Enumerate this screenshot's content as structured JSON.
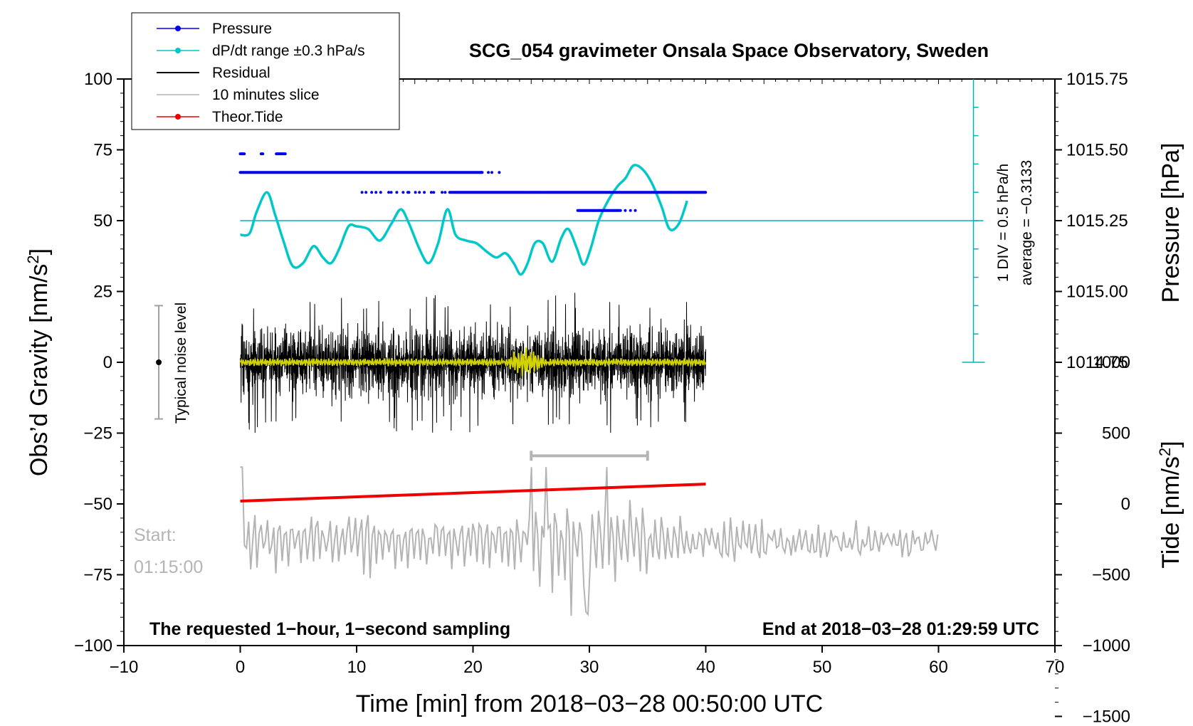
{
  "chart_data": {
    "type": "line",
    "title": "SCG_054 gravimeter Onsala Space Observatory, Sweden",
    "xlabel": "Time [min] from 2018−03−28 00:50:00 UTC",
    "ylabel_left": "Obs’d Gravity [nm/s",
    "ylabel_left_sup": "2",
    "ylabel_left_end": "]",
    "ylabel_right_top": "Pressure [hPa]",
    "ylabel_right_bottom": "Tide [nm/s",
    "ylabel_right_bottom_sup": "2",
    "ylabel_right_bottom_end": "]",
    "xlim": [
      -10,
      70
    ],
    "ylim": [
      -100,
      100
    ],
    "x_ticks": [
      -10,
      0,
      10,
      20,
      30,
      40,
      50,
      60,
      70
    ],
    "x_tick_labels": [
      "−10",
      "0",
      "10",
      "20",
      "30",
      "40",
      "50",
      "60",
      "70"
    ],
    "y_ticks": [
      100,
      75,
      50,
      25,
      0,
      -25,
      -50,
      -75,
      -100
    ],
    "y_tick_labels": [
      "100",
      "75",
      "50",
      "25",
      "0",
      "−25",
      "−50",
      "−75",
      "−100"
    ],
    "pressure_axis": {
      "ticks": [
        1015.75,
        1015.5,
        1015.25,
        1015.0,
        1014.75
      ],
      "tick_labels": [
        "1015.75",
        "1015.50",
        "1015.25",
        "1015.00",
        "1014.75"
      ],
      "gravity_at_1015_25": 50,
      "gravity_per_hpa": 100
    },
    "tide_axis": {
      "ticks": [
        1000,
        500,
        0,
        -500,
        -1000,
        -1500
      ],
      "tick_labels": [
        "1000",
        "500",
        "0",
        "−500",
        "−1000",
        "−1500"
      ],
      "gravity_at_zero": -50,
      "gravity_per_1000": 50
    },
    "legend": [
      {
        "label": "Pressure",
        "color": "#0000ee",
        "marker": "dot"
      },
      {
        "label": "dP/dt range ±0.3 hPa/s",
        "color": "#00c8c8",
        "marker": "dot"
      },
      {
        "label": "Residual",
        "color": "#000000",
        "marker": "none"
      },
      {
        "label": "10 minutes slice",
        "color": "#b4b4b4",
        "marker": "none"
      },
      {
        "label": "Theor.Tide",
        "color": "#ee0000",
        "marker": "dot"
      }
    ],
    "series": [
      {
        "name": "Pressure",
        "color": "#0000ee",
        "style": "dots",
        "segments": [
          {
            "x0": 0,
            "x1": 0.4,
            "y": 73.6
          },
          {
            "x0": 1.8,
            "x1": 2.0,
            "y": 73.6
          },
          {
            "x0": 3.1,
            "x1": 3.9,
            "y": 73.6
          },
          {
            "x0": 0,
            "x1": 20.8,
            "y": 67.0
          },
          {
            "x0": 20.8,
            "x1": 22.2,
            "y": 67.0,
            "sparse": true
          },
          {
            "x0": 10.4,
            "x1": 14.5,
            "y": 60.0,
            "sparse": true
          },
          {
            "x0": 14.5,
            "x1": 18.0,
            "y": 60.0,
            "sparse": true
          },
          {
            "x0": 18.0,
            "x1": 40.0,
            "y": 60.0
          },
          {
            "x0": 29.0,
            "x1": 32.6,
            "y": 53.6
          },
          {
            "x0": 32.6,
            "x1": 34.0,
            "y": 53.6,
            "sparse": true
          }
        ]
      },
      {
        "name": "dP/dt",
        "color": "#00c8c8",
        "style": "line",
        "x": [
          0,
          0.8,
          1.4,
          2.3,
          3.0,
          3.7,
          4.5,
          5.4,
          6.3,
          7.1,
          7.8,
          8.5,
          9.3,
          10.0,
          11.0,
          12.0,
          13.0,
          13.8,
          14.5,
          15.4,
          16.2,
          17.0,
          17.8,
          18.5,
          19.4,
          20.3,
          21.2,
          22.0,
          22.8,
          23.5,
          24.1,
          24.7,
          25.3,
          26.0,
          26.8,
          27.6,
          28.2,
          28.9,
          29.5,
          30.1,
          30.8,
          31.6,
          32.4,
          33.1,
          33.8,
          34.6,
          35.4,
          36.2,
          36.9,
          37.7,
          38.4
        ],
        "y": [
          45,
          45.5,
          53,
          60,
          52,
          43,
          34,
          35,
          41,
          37,
          35,
          40,
          48,
          48,
          47,
          43,
          49,
          54,
          49,
          40,
          35,
          42,
          54,
          45,
          43,
          42,
          39,
          37,
          38.5,
          35,
          31,
          35,
          42,
          42,
          35.5,
          44,
          47,
          40.5,
          34.5,
          40,
          50,
          57,
          62,
          65,
          69.5,
          68,
          63,
          55,
          47,
          49,
          57
        ]
      },
      {
        "name": "Residual",
        "color": "#000000",
        "style": "noise",
        "x0": 0,
        "x1": 40,
        "amplitude_typical": 16,
        "amplitude_max": 25
      },
      {
        "name": "Residual filtered",
        "color": "#d2d200",
        "style": "noise-smooth",
        "x0": 0,
        "x1": 40,
        "amplitude_typical": 1.5,
        "burst_x": [
          22.5,
          26.5
        ],
        "burst_amplitude": 6
      },
      {
        "name": "10 minutes slice",
        "color": "#b4b4b4",
        "style": "oscillation",
        "x0": 0,
        "x1": 60,
        "y_center": -63,
        "y_max": -37,
        "y_min": -90,
        "window": [
          25,
          35
        ],
        "window_y": -33
      },
      {
        "name": "Theor.Tide",
        "color": "#ee0000",
        "style": "line",
        "x": [
          0,
          40
        ],
        "y": [
          -49,
          -43
        ]
      }
    ],
    "pressure_reference": {
      "y": 50,
      "color": "#00b4b4",
      "x0": 0,
      "x1": 63
    },
    "pressure_scale_bar": {
      "x": 63,
      "y0": 0,
      "y1": 100,
      "div_hpa": 0.1,
      "label_div": "1 DIV = 0.5 hPa/h",
      "label_avg": "average = −0.3133"
    },
    "noise_bar": {
      "x": -7,
      "y0": -20,
      "y1": 20,
      "y_dot": 0,
      "label": "Typical noise level"
    },
    "annotations": {
      "start_label": "Start:",
      "start_time": "01:15:00",
      "bottom_left": "The requested 1−hour, 1−second sampling",
      "bottom_right": "End at 2018−03−28 01:29:59 UTC"
    }
  }
}
